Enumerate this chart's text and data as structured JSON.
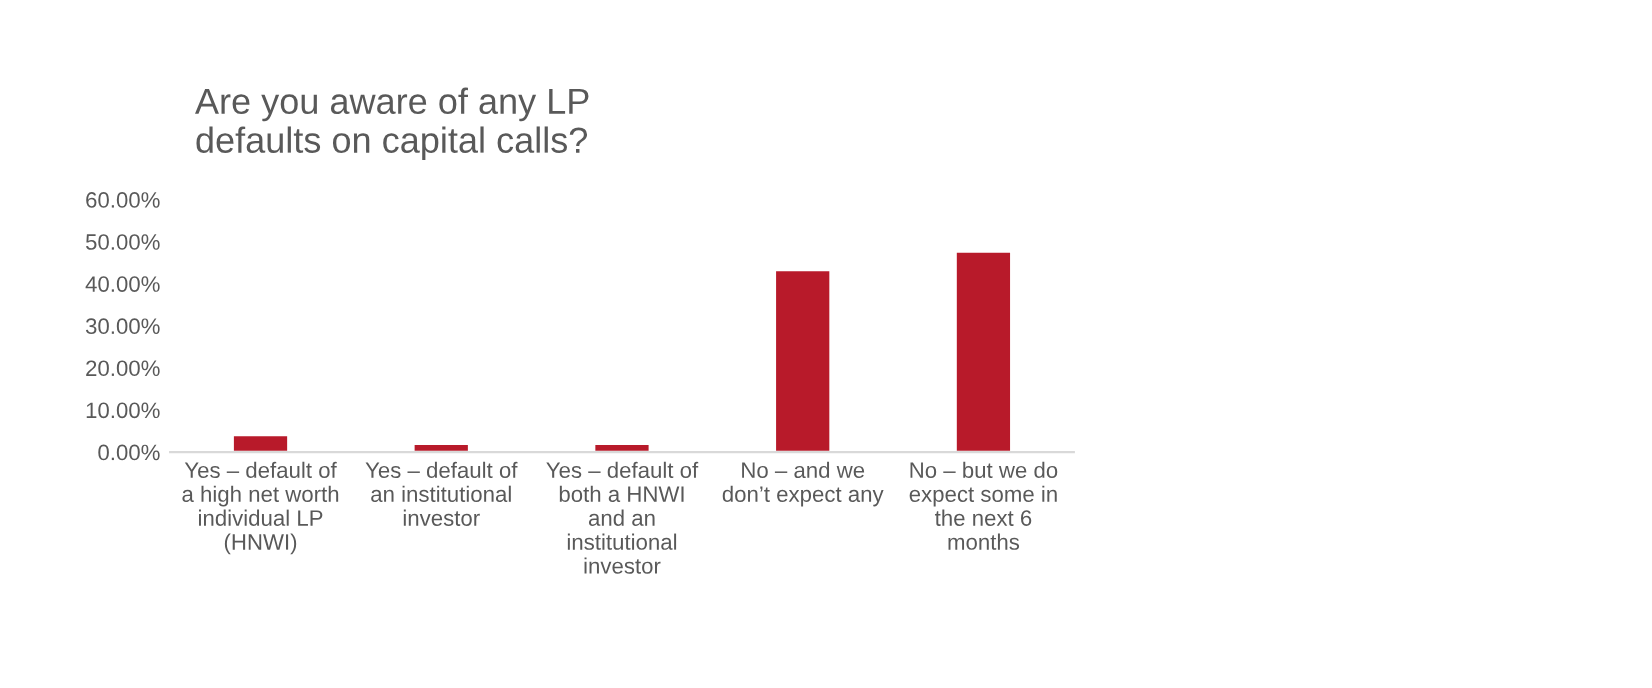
{
  "chart_data": {
    "type": "bar",
    "title": "Are you aware of any LP defaults on capital calls?",
    "categories": [
      "Yes – default of a high net worth individual LP (HNWI)",
      "Yes – default of an institutional investor",
      "Yes – default of both a HNWI and an institutional investor",
      "No – and we don’t expect any",
      "No – but we do expect some in the next 6 months"
    ],
    "values": [
      4.1,
      2,
      2,
      43.3,
      47.7
    ],
    "color": "#b81a2a",
    "ylim": [
      0,
      60
    ],
    "yticks": [
      {
        "value": 0,
        "label": "0.00%"
      },
      {
        "value": 10,
        "label": "10.00%"
      },
      {
        "value": 20,
        "label": "20.00%"
      },
      {
        "value": 30,
        "label": "30.00%"
      },
      {
        "value": 40,
        "label": "40.00%"
      },
      {
        "value": 50,
        "label": "50.00%"
      },
      {
        "value": 60,
        "label": "60.00%"
      }
    ],
    "grid": false,
    "legend": false
  }
}
